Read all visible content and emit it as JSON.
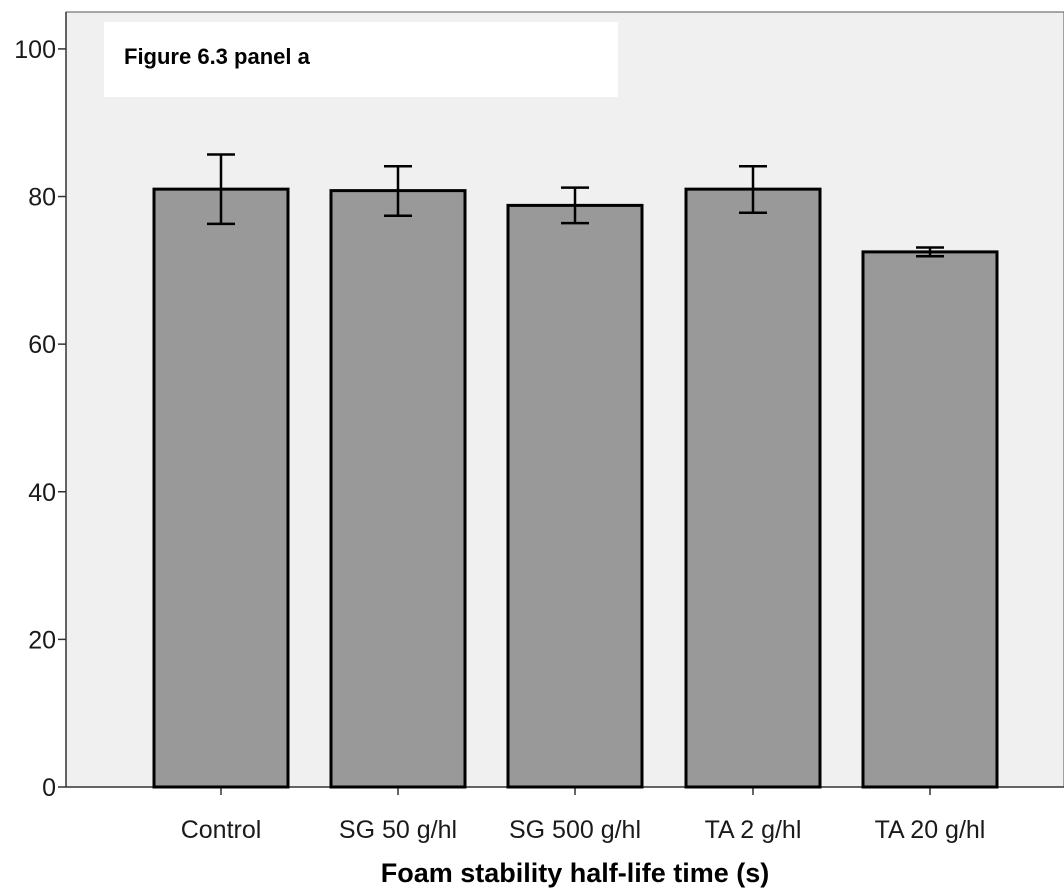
{
  "chart_data": {
    "type": "bar",
    "title": "Figure 6.3 panel a",
    "xlabel": "Foam stability half-life time (s)",
    "ylabel": "",
    "categories": [
      "Control",
      "SG 50 g/hl",
      "SG 500 g/hl",
      "TA 2 g/hl",
      "TA 20 g/hl"
    ],
    "values": [
      81.0,
      80.8,
      78.8,
      81.0,
      72.5
    ],
    "error_low": [
      76.3,
      77.4,
      76.4,
      77.8,
      71.9
    ],
    "error_high": [
      85.7,
      84.1,
      81.2,
      84.1,
      73.1
    ],
    "ylim": [
      0,
      105
    ],
    "yticks": [
      0,
      20,
      40,
      60,
      80,
      100
    ],
    "grid": false,
    "colors": {
      "bar_fill": "#999999",
      "bar_stroke": "#000000",
      "plot_background": "#f0f0f0",
      "error_bar": "#000000"
    }
  }
}
